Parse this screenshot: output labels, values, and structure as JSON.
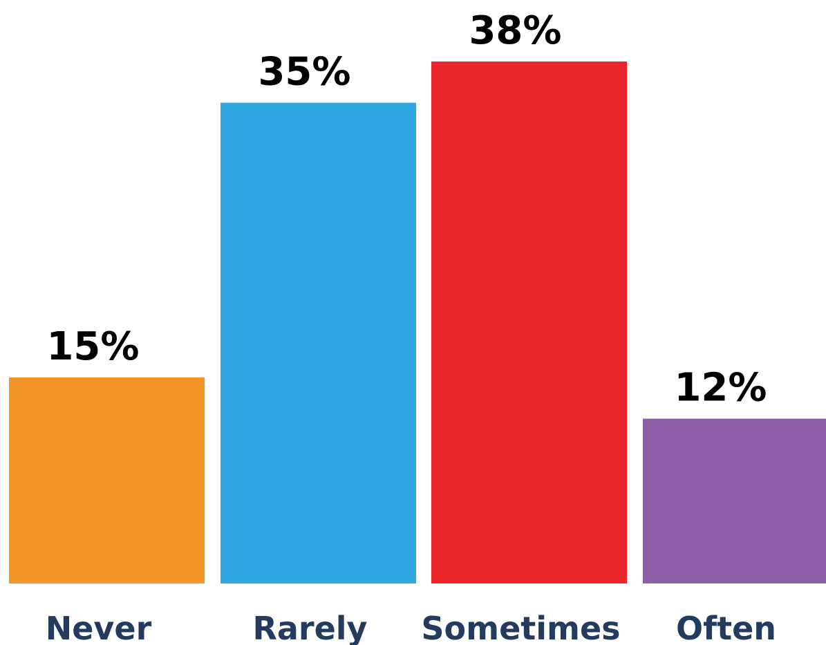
{
  "chart_data": {
    "type": "bar",
    "categories": [
      "Never",
      "Rarely",
      "Sometimes",
      "Often"
    ],
    "values": [
      15,
      35,
      38,
      12
    ],
    "value_labels": [
      "15%",
      "35%",
      "38%",
      "12%"
    ],
    "colors": [
      "#F59527",
      "#2FA8E1",
      "#EA262B",
      "#8D5FA6"
    ],
    "category_label_color": "#233B5E",
    "title": "",
    "xlabel": "",
    "ylabel": "",
    "ylim": [
      0,
      38
    ],
    "grid": false,
    "legend": "none"
  }
}
